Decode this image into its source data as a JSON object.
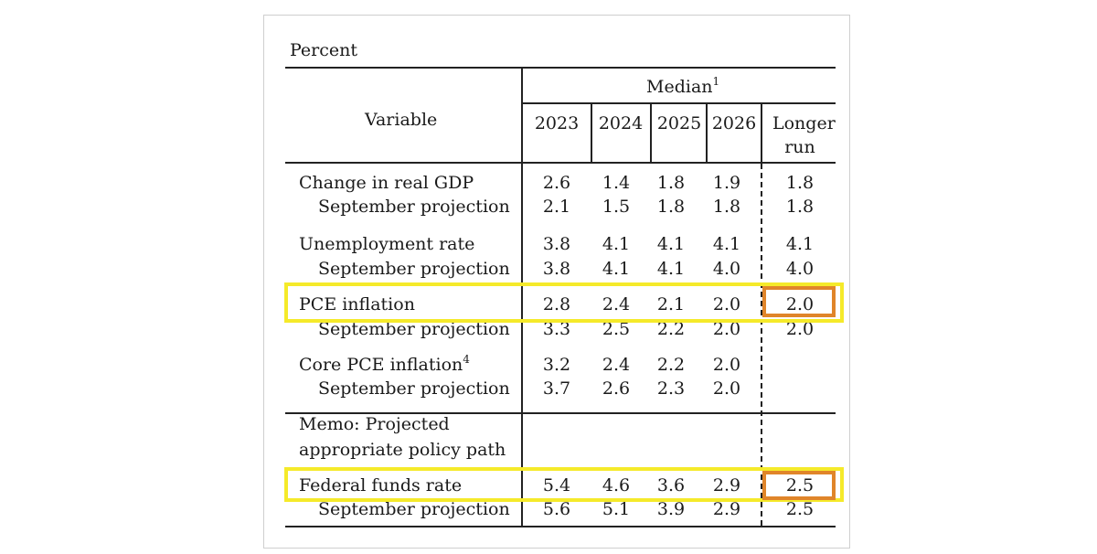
{
  "unit_label": "Percent",
  "header": {
    "variable": "Variable",
    "median": "Median",
    "median_note": "1",
    "years": [
      "2023",
      "2024",
      "2025",
      "2026"
    ],
    "longer_run_1": "Longer",
    "longer_run_2": "run"
  },
  "rows": [
    {
      "label": "Change in real GDP",
      "values": [
        "2.6",
        "1.4",
        "1.8",
        "1.9"
      ],
      "longer_run": "1.8"
    },
    {
      "label": "September projection",
      "values": [
        "2.1",
        "1.5",
        "1.8",
        "1.8"
      ],
      "longer_run": "1.8"
    },
    {
      "label": "Unemployment rate",
      "values": [
        "3.8",
        "4.1",
        "4.1",
        "4.1"
      ],
      "longer_run": "4.1"
    },
    {
      "label": "September projection",
      "values": [
        "3.8",
        "4.1",
        "4.1",
        "4.0"
      ],
      "longer_run": "4.0"
    },
    {
      "label": "PCE inflation",
      "values": [
        "2.8",
        "2.4",
        "2.1",
        "2.0"
      ],
      "longer_run": "2.0"
    },
    {
      "label": "September projection",
      "values": [
        "3.3",
        "2.5",
        "2.2",
        "2.0"
      ],
      "longer_run": "2.0"
    },
    {
      "label": "Core PCE inflation",
      "note": "4",
      "values": [
        "3.2",
        "2.4",
        "2.2",
        "2.0"
      ],
      "longer_run": ""
    },
    {
      "label": "September projection",
      "values": [
        "3.7",
        "2.6",
        "2.3",
        "2.0"
      ],
      "longer_run": ""
    }
  ],
  "memo": {
    "line1": "Memo: Projected",
    "line2": "appropriate policy path"
  },
  "policy_rows": [
    {
      "label": "Federal funds rate",
      "values": [
        "5.4",
        "4.6",
        "3.6",
        "2.9"
      ],
      "longer_run": "2.5"
    },
    {
      "label": "September projection",
      "values": [
        "5.6",
        "5.1",
        "3.9",
        "2.9"
      ],
      "longer_run": "2.5"
    }
  ],
  "colors": {
    "highlight_row": "#f5ea2a",
    "highlight_cell": "#e0852a"
  }
}
